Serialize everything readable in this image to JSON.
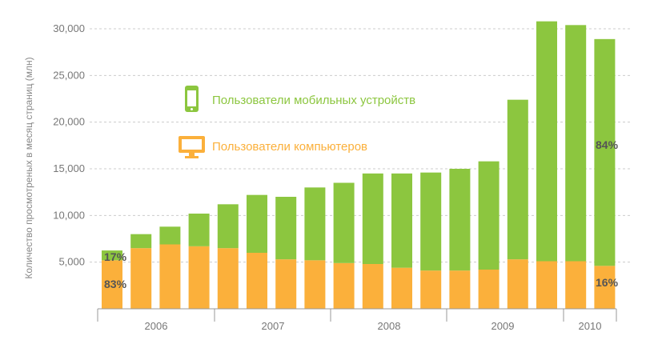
{
  "chart_data": {
    "type": "bar",
    "stacked": true,
    "categories": [
      "2006 Q1",
      "2006 Q2",
      "2006 Q3",
      "2006 Q4",
      "2007 Q1",
      "2007 Q2",
      "2007 Q3",
      "2007 Q4",
      "2008 Q1",
      "2008 Q2",
      "2008 Q3",
      "2008 Q4",
      "2009 Q1",
      "2009 Q2",
      "2009 Q3",
      "2009 Q4",
      "2010 Q1",
      "2010 Q2"
    ],
    "x_groups": [
      "2006",
      "2007",
      "2008",
      "2009",
      "2010"
    ],
    "ylabel": "Количество просмотреных в месяц страниц (млн)",
    "xlabel": "",
    "ylim": [
      0,
      30000
    ],
    "yticks": [
      "5,000",
      "10,000",
      "15,000",
      "20,000",
      "25,000",
      "30,000"
    ],
    "ytick_values": [
      5000,
      10000,
      15000,
      20000,
      25000,
      30000
    ],
    "grid": true,
    "series": [
      {
        "name": "Пользователи компьютеров",
        "color": "#fbb03b",
        "values": [
          5200,
          6500,
          6900,
          6700,
          6500,
          6000,
          5300,
          5200,
          4900,
          4800,
          4400,
          4100,
          4100,
          4200,
          5300,
          5100,
          5100,
          4600
        ]
      },
      {
        "name": "Пользователи мобильных устройств",
        "color": "#8cc63f",
        "values": [
          1050,
          1500,
          1900,
          3500,
          4700,
          6200,
          6700,
          7800,
          8600,
          9700,
          10100,
          10500,
          10900,
          11600,
          17100,
          25700,
          25300,
          24300
        ]
      }
    ],
    "annotations": {
      "first_bar_top": "17%",
      "first_bar_bottom": "83%",
      "last_bar_top": "84%",
      "last_bar_bottom": "16%"
    },
    "legend_placement": "inside-top-left"
  },
  "legend": {
    "mobile_label": "Пользователи мобильных устройств",
    "desktop_label": "Пользователи компьютеров",
    "mobile_icon": "phone-icon",
    "desktop_icon": "monitor-icon"
  }
}
